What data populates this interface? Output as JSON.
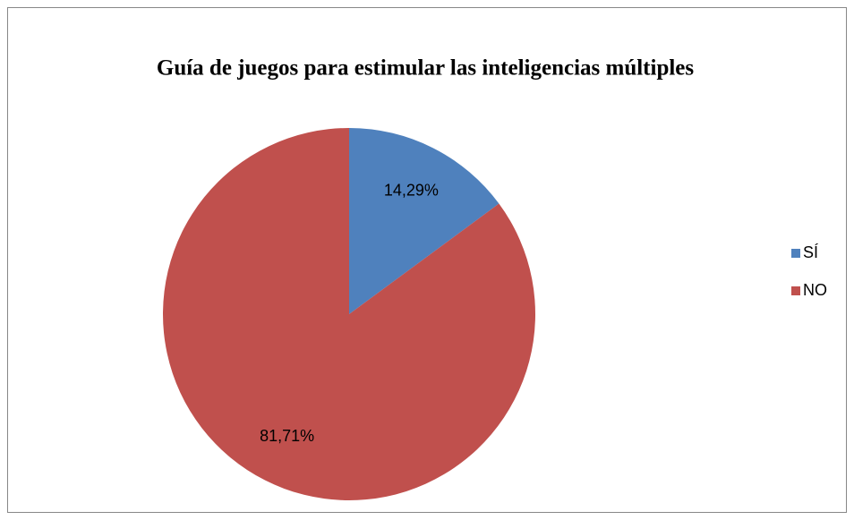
{
  "chart_data": {
    "type": "pie",
    "title": "Guía de juegos para estimular las inteligencias múltiples",
    "categories": [
      "SÍ",
      "NO"
    ],
    "values": [
      14.29,
      81.71
    ],
    "value_labels": [
      "14,29%",
      "81,71%"
    ],
    "colors": [
      "#4f81bd",
      "#c0504d"
    ],
    "legend": "right"
  }
}
